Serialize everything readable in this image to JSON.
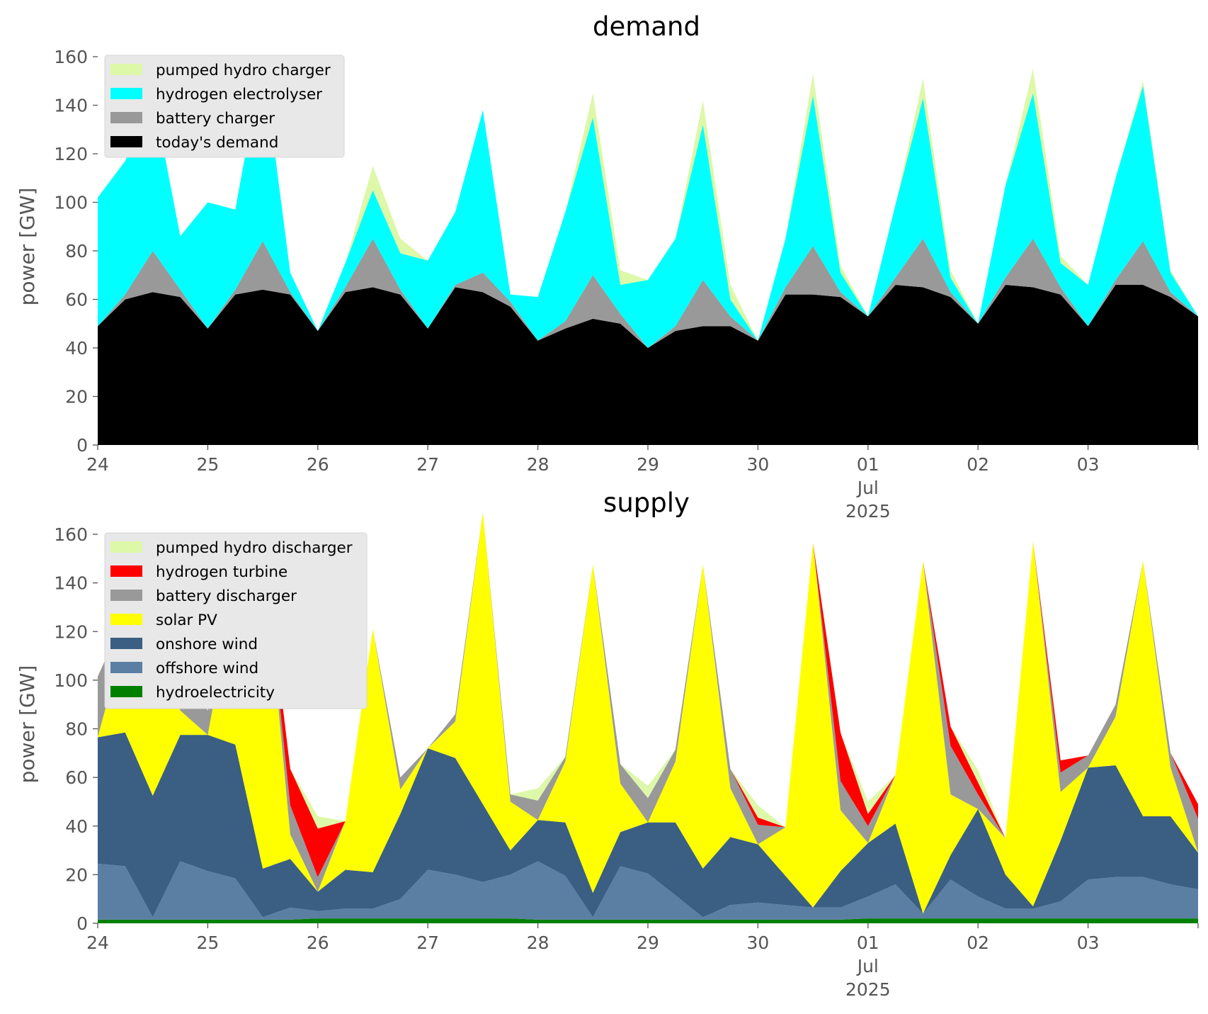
{
  "chart_data": [
    {
      "type": "area",
      "stacked": true,
      "title": "demand",
      "ylabel": "power [GW]",
      "ylim": [
        0,
        160
      ],
      "yticks": [
        0,
        20,
        40,
        60,
        80,
        100,
        120,
        140,
        160
      ],
      "xlim_days": [
        24,
        34
      ],
      "xtick_labels": [
        "24",
        "25",
        "26",
        "27",
        "28",
        "29",
        "30",
        "01",
        "02",
        "03"
      ],
      "xtick_month_label": "Jul",
      "xtick_year_label": "2025",
      "legend_position": "upper-left",
      "grid": false,
      "x": [
        "06-24 00:00",
        "06-24 06:00",
        "06-24 12:00",
        "06-24 18:00",
        "06-25 00:00",
        "06-25 06:00",
        "06-25 12:00",
        "06-25 18:00",
        "06-26 00:00",
        "06-26 06:00",
        "06-26 12:00",
        "06-26 18:00",
        "06-27 00:00",
        "06-27 06:00",
        "06-27 12:00",
        "06-27 18:00",
        "06-28 00:00",
        "06-28 06:00",
        "06-28 12:00",
        "06-28 18:00",
        "06-29 00:00",
        "06-29 06:00",
        "06-29 12:00",
        "06-29 18:00",
        "06-30 00:00",
        "06-30 06:00",
        "06-30 12:00",
        "06-30 18:00",
        "07-01 00:00",
        "07-01 06:00",
        "07-01 12:00",
        "07-01 18:00",
        "07-02 00:00",
        "07-02 06:00",
        "07-02 12:00",
        "07-02 18:00",
        "07-03 00:00",
        "07-03 06:00",
        "07-03 12:00",
        "07-03 18:00",
        "07-04 00:00"
      ],
      "series": [
        {
          "name": "today's demand",
          "color": "#000000",
          "values": [
            49,
            60,
            63,
            61,
            48,
            62,
            64,
            62,
            47,
            63,
            65,
            62,
            48,
            65,
            63,
            57,
            43,
            48,
            52,
            50,
            40,
            47,
            49,
            49,
            43,
            62,
            62,
            61,
            53,
            66,
            65,
            61,
            50,
            66,
            65,
            62,
            49,
            66,
            66,
            61,
            53
          ]
        },
        {
          "name": "battery charger",
          "color": "#999999",
          "values": [
            0,
            2,
            17,
            3,
            0,
            2,
            20,
            1,
            0,
            2,
            20,
            2,
            0,
            1,
            8,
            2,
            0,
            3,
            18,
            4,
            0,
            2,
            19,
            4,
            0,
            3,
            20,
            2,
            0,
            3,
            20,
            2,
            0,
            3,
            20,
            3,
            0,
            2,
            18,
            2,
            0
          ]
        },
        {
          "name": "hydrogen electrolyser",
          "color": "#00ffff",
          "values": [
            53,
            55,
            65,
            22,
            52,
            33,
            75,
            8,
            0,
            10,
            20,
            15,
            28,
            30,
            67,
            3,
            18,
            45,
            65,
            12,
            28,
            36,
            64,
            7,
            0,
            20,
            62,
            8,
            0,
            30,
            58,
            6,
            0,
            38,
            60,
            10,
            17,
            42,
            64,
            8,
            0
          ]
        },
        {
          "name": "pumped hydro charger",
          "color": "#ddf8a8",
          "values": [
            0,
            0,
            0,
            0,
            0,
            0,
            0,
            0,
            0,
            0,
            10,
            6,
            0,
            0,
            0,
            0,
            0,
            0,
            10,
            6,
            0,
            0,
            10,
            6,
            0,
            0,
            9,
            3,
            0,
            0,
            8,
            3,
            0,
            0,
            10,
            3,
            0,
            0,
            2,
            1,
            0
          ]
        }
      ],
      "legend_order": [
        "pumped hydro charger",
        "hydrogen electrolyser",
        "battery charger",
        "today's demand"
      ]
    },
    {
      "type": "area",
      "stacked": true,
      "title": "supply",
      "ylabel": "power [GW]",
      "ylim": [
        0,
        160
      ],
      "yticks": [
        0,
        20,
        40,
        60,
        80,
        100,
        120,
        140,
        160
      ],
      "xlim_days": [
        24,
        34
      ],
      "xtick_labels": [
        "24",
        "25",
        "26",
        "27",
        "28",
        "29",
        "30",
        "01",
        "02",
        "03"
      ],
      "xtick_month_label": "Jul",
      "xtick_year_label": "2025",
      "legend_position": "upper-left",
      "grid": false,
      "x": [
        "06-24 00:00",
        "06-24 06:00",
        "06-24 12:00",
        "06-24 18:00",
        "06-25 00:00",
        "06-25 06:00",
        "06-25 12:00",
        "06-25 18:00",
        "06-26 00:00",
        "06-26 06:00",
        "06-26 12:00",
        "06-26 18:00",
        "06-27 00:00",
        "06-27 06:00",
        "06-27 12:00",
        "06-27 18:00",
        "06-28 00:00",
        "06-28 06:00",
        "06-28 12:00",
        "06-28 18:00",
        "06-29 00:00",
        "06-29 06:00",
        "06-29 12:00",
        "06-29 18:00",
        "06-30 00:00",
        "06-30 06:00",
        "06-30 12:00",
        "06-30 18:00",
        "07-01 00:00",
        "07-01 06:00",
        "07-01 12:00",
        "07-01 18:00",
        "07-02 00:00",
        "07-02 06:00",
        "07-02 12:00",
        "07-02 18:00",
        "07-03 00:00",
        "07-03 06:00",
        "07-03 12:00",
        "07-03 18:00",
        "07-04 00:00"
      ],
      "series": [
        {
          "name": "hydroelectricity",
          "color": "#008000",
          "values": [
            1.5,
            1.5,
            1.5,
            1.5,
            1.5,
            1.5,
            1.5,
            1.5,
            2,
            2,
            2,
            2,
            2,
            2,
            2,
            2,
            1.5,
            1.5,
            1.5,
            1.5,
            1.5,
            1.5,
            1.5,
            1.5,
            1.5,
            1.5,
            1.5,
            1.5,
            2,
            2,
            2,
            2,
            2,
            2,
            2,
            2,
            2,
            2,
            2,
            2,
            2
          ]
        },
        {
          "name": "offshore wind",
          "color": "#5b7fa3",
          "values": [
            23,
            22,
            1,
            24,
            20,
            17,
            1,
            5,
            3,
            4,
            4,
            8,
            20,
            18,
            15,
            18,
            24,
            18,
            1,
            22,
            19,
            10,
            1,
            6,
            7,
            6,
            5,
            5,
            9,
            14,
            2,
            16,
            9,
            4,
            4,
            7,
            16,
            17,
            17,
            14,
            12
          ]
        },
        {
          "name": "onshore wind",
          "color": "#3a5f82",
          "values": [
            52,
            55,
            50,
            52,
            56,
            55,
            20,
            20,
            8,
            16,
            15,
            35,
            50,
            48,
            32,
            10,
            17,
            22,
            10,
            14,
            21,
            30,
            20,
            28,
            24,
            12,
            0,
            15,
            22,
            25,
            0,
            10,
            36,
            14,
            1,
            25,
            46,
            46,
            25,
            28,
            15
          ]
        },
        {
          "name": "solar PV",
          "color": "#ffff00",
          "values": [
            0,
            40,
            85,
            10,
            0,
            65,
            135,
            10,
            0,
            20,
            100,
            10,
            0,
            15,
            120,
            20,
            0,
            25,
            135,
            20,
            0,
            25,
            125,
            20,
            0,
            20,
            150,
            25,
            0,
            20,
            145,
            25,
            0,
            15,
            150,
            20,
            0,
            20,
            105,
            20,
            0
          ]
        },
        {
          "name": "battery discharger",
          "color": "#999999",
          "values": [
            25,
            8,
            0,
            18,
            10,
            5,
            0,
            12,
            6,
            0,
            0,
            5,
            0,
            3,
            0,
            3,
            8,
            2,
            0,
            8,
            10,
            5,
            0,
            8,
            8,
            0,
            0,
            12,
            7,
            0,
            0,
            20,
            6,
            0,
            0,
            8,
            5,
            5,
            0,
            6,
            14
          ]
        },
        {
          "name": "hydrogen turbine",
          "color": "#ff0000",
          "values": [
            0,
            0,
            0,
            0,
            0,
            0,
            0,
            15,
            20,
            0,
            0,
            0,
            0,
            0,
            0,
            0,
            0,
            0,
            0,
            0,
            0,
            0,
            0,
            0,
            3,
            0,
            0,
            20,
            5,
            0,
            0,
            8,
            5,
            0,
            0,
            5,
            0,
            0,
            0,
            0,
            6
          ]
        },
        {
          "name": "pumped hydro discharger",
          "color": "#ddf8a8",
          "values": [
            0,
            0,
            0,
            0,
            0,
            0,
            0,
            0,
            5,
            0,
            0,
            0,
            0,
            0,
            0,
            0,
            5,
            0,
            0,
            0,
            5,
            0,
            0,
            0,
            5,
            0,
            0,
            0,
            5,
            0,
            0,
            0,
            5,
            0,
            0,
            0,
            0,
            0,
            0,
            0,
            0
          ]
        }
      ],
      "legend_order": [
        "pumped hydro discharger",
        "hydrogen turbine",
        "battery discharger",
        "solar PV",
        "onshore wind",
        "offshore wind",
        "hydroelectricity"
      ]
    }
  ]
}
